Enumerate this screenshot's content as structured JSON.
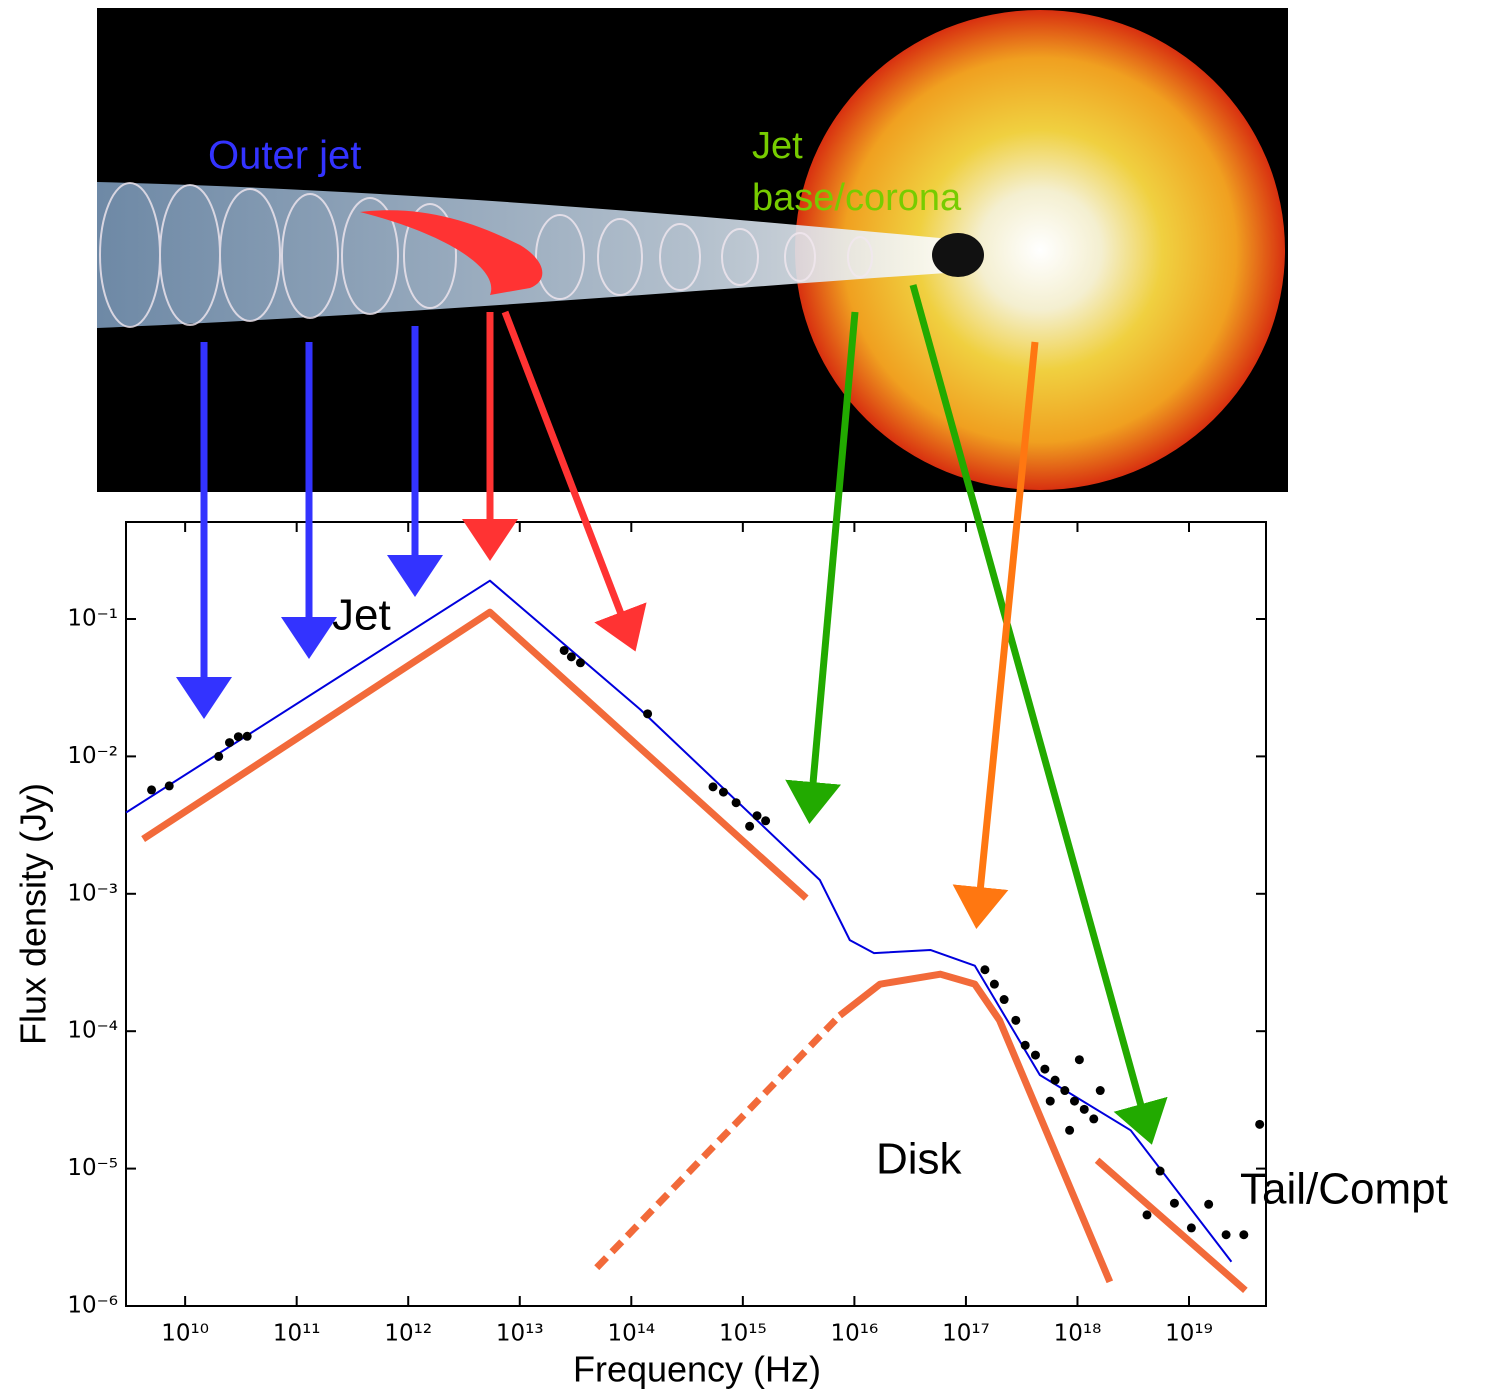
{
  "illustration": {
    "labels": [
      "Outer jet",
      "Jet",
      "base/corona"
    ]
  },
  "chart_data": {
    "type": "line",
    "xlabel": "Frequency (Hz)",
    "ylabel": "Flux density (Jy)",
    "xscale": "log",
    "yscale": "log",
    "xlim": [
      2950000000.0,
      4.9e+19
    ],
    "ylim": [
      1e-06,
      0.508
    ],
    "xticks": [
      {
        "value": 10000000000.0,
        "label": "10¹⁰"
      },
      {
        "value": 100000000000.0,
        "label": "10¹¹"
      },
      {
        "value": 1000000000000.0,
        "label": "10¹²"
      },
      {
        "value": 10000000000000.0,
        "label": "10¹³"
      },
      {
        "value": 100000000000000.0,
        "label": "10¹⁴"
      },
      {
        "value": 1000000000000000.0,
        "label": "10¹⁵"
      },
      {
        "value": 1e+16,
        "label": "10¹⁶"
      },
      {
        "value": 1e+17,
        "label": "10¹⁷"
      },
      {
        "value": 1e+18,
        "label": "10¹⁸"
      },
      {
        "value": 1e+19,
        "label": "10¹⁹"
      }
    ],
    "yticks": [
      {
        "value": 1e-06,
        "label": "10⁻⁶"
      },
      {
        "value": 1e-05,
        "label": "10⁻⁵"
      },
      {
        "value": 0.0001,
        "label": "10⁻⁴"
      },
      {
        "value": 0.001,
        "label": "10⁻³"
      },
      {
        "value": 0.01,
        "label": "10⁻²"
      },
      {
        "value": 0.1,
        "label": "10⁻¹"
      }
    ],
    "annotations": [
      "Jet",
      "Disk",
      "Tail/Compt"
    ],
    "series": [
      {
        "color": "#f26a3a",
        "width": 7,
        "x": [
          4200000000.0,
          5400000000000.0,
          3700000000000000.0
        ],
        "values": [
          0.0025,
          0.112,
          0.00093
        ]
      },
      {
        "color": "#f26a3a",
        "width": 7,
        "dash": true,
        "x": [
          49000000000000.0,
          7400000000000000.0
        ],
        "values": [
          1.9e-06,
          0.00013
        ]
      },
      {
        "color": "#f26a3a",
        "width": 7,
        "x": [
          7400000000000000.0,
          1.7e+16,
          5.9e+16,
          1.2e+17,
          2e+17,
          1.95e+18
        ],
        "values": [
          0.00013,
          0.00022,
          0.00026,
          0.00022,
          0.00012,
          1.5e-06
        ]
      },
      {
        "color": "#f26a3a",
        "width": 7,
        "x": [
          1.5e+18,
          3.2e+19
        ],
        "values": [
          1.15e-05,
          1.3e-06
        ]
      },
      {
        "color": "#0000dd",
        "width": 2,
        "x": [
          2950000000.0,
          5400000000000.0,
          120000000000000.0,
          4900000000000000.0,
          9100000000000000.0,
          1.5e+16,
          4.8e+16,
          1.2e+17,
          4.6e+17,
          3e+18,
          2.4e+19
        ],
        "values": [
          0.0039,
          0.19,
          0.022,
          0.00126,
          0.00046,
          0.00037,
          0.00039,
          0.0003,
          4.8e-05,
          1.9e-05,
          2.1e-06
        ]
      },
      {
        "type": "scatter",
        "color": "#000000",
        "x": [
          5000000000.0,
          7200000000.0,
          20000000000.0,
          25000000000.0,
          30000000000.0,
          36000000000.0,
          25000000000000.0,
          29000000000000.0,
          35000000000000.0,
          140000000000000.0,
          540000000000000.0,
          670000000000000.0,
          870000000000000.0,
          1150000000000000.0,
          1340000000000000.0,
          1600000000000000.0,
          1.48e+17,
          1.8e+17,
          2.2e+17,
          2.8e+17,
          3.4e+17,
          4.2e+17,
          5.1e+17,
          6.3e+17,
          7.7e+17,
          9.4e+17,
          1.15e+18,
          1.4e+18,
          5.7e+17,
          8.5e+17,
          1.04e+18,
          1.6e+18,
          4.2e+18,
          5.5e+18,
          7.4e+18,
          1.05e+19,
          1.5e+19,
          2.15e+19,
          3.1e+19,
          4.3e+19
        ],
        "values": [
          0.0057,
          0.0061,
          0.01,
          0.0126,
          0.0139,
          0.014,
          0.059,
          0.053,
          0.048,
          0.0204,
          0.006,
          0.0055,
          0.0046,
          0.0031,
          0.0037,
          0.0034,
          0.00028,
          0.00022,
          0.00017,
          0.00012,
          7.9e-05,
          6.7e-05,
          5.3e-05,
          4.4e-05,
          3.7e-05,
          3.1e-05,
          2.7e-05,
          2.3e-05,
          3.1e-05,
          1.9e-05,
          6.2e-05,
          3.7e-05,
          4.6e-06,
          9.6e-06,
          5.6e-06,
          3.7e-06,
          5.5e-06,
          3.3e-06,
          3.3e-06,
          2.1e-05
        ]
      }
    ]
  }
}
